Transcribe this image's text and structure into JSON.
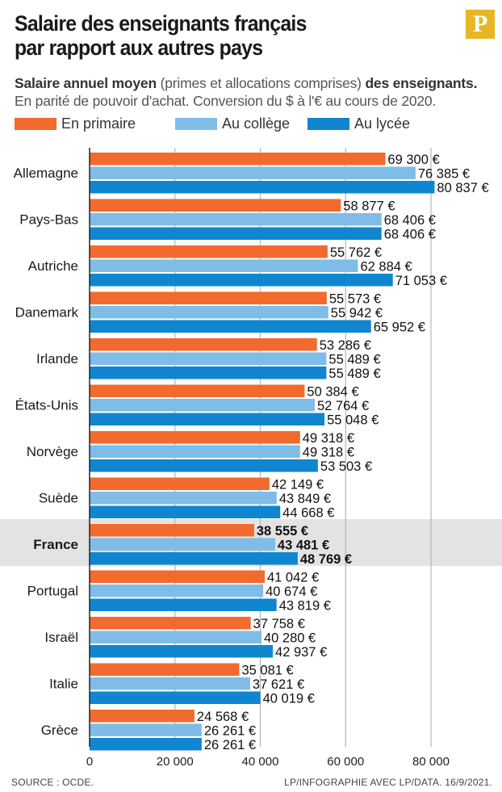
{
  "header": {
    "title_line1": "Salaire des enseignants français",
    "title_line2": "par rapport aux autres pays",
    "logo_letter": "P",
    "subtitle_bold1": "Salaire annuel moyen",
    "subtitle_text1": " (primes et allocations comprises) ",
    "subtitle_bold2": "des enseignants.",
    "subtitle_line2": "En parité de pouvoir d'achat. Conversion du $ à l'€ au cours de 2020."
  },
  "colors": {
    "primaire": "#f26a2e",
    "college": "#7fbde8",
    "lycee": "#0f86cf",
    "highlight_band": "#e3e3e3",
    "gridline": "#b5b5b5",
    "logo": "#e8b624"
  },
  "footer": {
    "source": "SOURCE : OCDE.",
    "credit": "LP/INFOGRAPHIE AVEC LP/DATA.  16/9/2021."
  },
  "chart_data": {
    "type": "bar",
    "orientation": "horizontal",
    "categories": [
      "Allemagne",
      "Pays-Bas",
      "Autriche",
      "Danemark",
      "Irlande",
      "États-Unis",
      "Norvège",
      "Suède",
      "France",
      "Portugal",
      "Israël",
      "Italie",
      "Grèce"
    ],
    "highlighted_category": "France",
    "series": [
      {
        "name": "En primaire",
        "color": "#f26a2e",
        "values": [
          69300,
          58877,
          55762,
          55573,
          53286,
          50384,
          49318,
          42149,
          38555,
          41042,
          37758,
          35081,
          24568
        ],
        "labels": [
          "69 300 €",
          "58 877 €",
          "55 762 €",
          "55 573 €",
          "53 286 €",
          "50 384 €",
          "49 318 €",
          "42 149 €",
          "38 555 €",
          "41 042 €",
          "37 758 €",
          "35 081 €",
          "24 568 €"
        ]
      },
      {
        "name": "Au collège",
        "color": "#7fbde8",
        "values": [
          76385,
          68406,
          62884,
          55942,
          55489,
          52764,
          49318,
          43849,
          43481,
          40674,
          40280,
          37621,
          26261
        ],
        "labels": [
          "76 385 €",
          "68 406 €",
          "62 884 €",
          "55 942 €",
          "55 489 €",
          "52 764 €",
          "49 318 €",
          "43 849 €",
          "43 481 €",
          "40 674 €",
          "40 280 €",
          "37 621 €",
          "26 261 €"
        ]
      },
      {
        "name": "Au lycée",
        "color": "#0f86cf",
        "values": [
          80837,
          68406,
          71053,
          65952,
          55489,
          55048,
          53503,
          44668,
          48769,
          43819,
          42937,
          40019,
          26261
        ],
        "labels": [
          "80 837 €",
          "68 406 €",
          "71 053 €",
          "65 952 €",
          "55 489 €",
          "55 048 €",
          "53 503 €",
          "44 668 €",
          "48 769 €",
          "43 819 €",
          "42 937 €",
          "40 019 €",
          "26 261 €"
        ]
      }
    ],
    "x_ticks": [
      0,
      20000,
      40000,
      60000,
      80000
    ],
    "x_tick_labels": [
      "0",
      "20 000",
      "40 000",
      "60 000",
      "80 000"
    ],
    "xlim": [
      0,
      80000
    ],
    "grid": "vertical",
    "legend_position": "top-left"
  }
}
